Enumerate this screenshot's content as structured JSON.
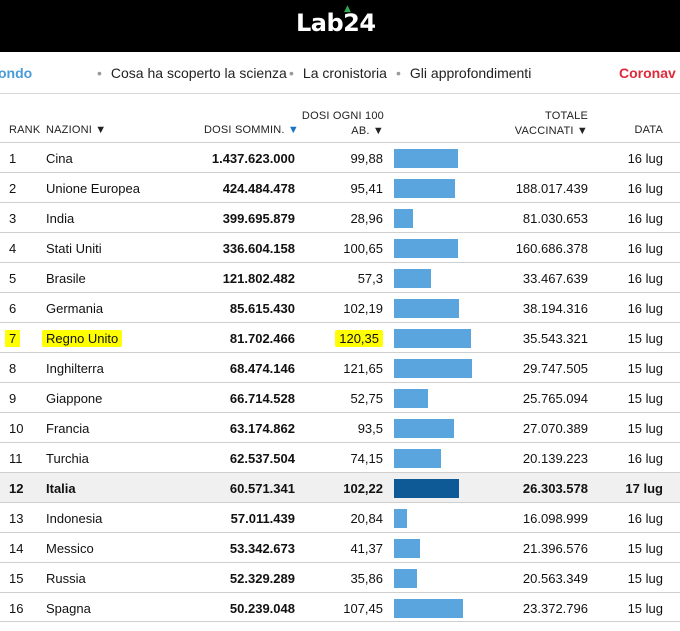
{
  "header": {
    "logo": "Lab24"
  },
  "nav": {
    "left_item": "ondo",
    "items": [
      "Cosa ha scoperto la scienza",
      "La cronistoria",
      "Gli approfondimenti"
    ],
    "right_item": "Coronav"
  },
  "columns": {
    "rank": "RANK",
    "nazioni": "NAZIONI",
    "dosi_somm": "DOSI SOMMIN.",
    "dosi_ogni_100_line1": "DOSI OGNI 100",
    "dosi_ogni_100_line2": "AB.",
    "totale_line1": "TOTALE",
    "totale_line2": "VACCINATI",
    "data": "DATA"
  },
  "icons": {
    "sort_down": "▼",
    "sort_active": "▼"
  },
  "colors": {
    "bar": "#5aa5dd",
    "bar_highlight": "#0d5a96",
    "marker": "#ffff00",
    "accent": "#1a73c6"
  },
  "rows": [
    {
      "rank": "1",
      "name": "Cina",
      "dosi": "1.437.623.000",
      "ogni100": "99,88",
      "ogni100_value": 99.88,
      "totale": "",
      "data": "16 lug"
    },
    {
      "rank": "2",
      "name": "Unione Europea",
      "dosi": "424.484.478",
      "ogni100": "95,41",
      "ogni100_value": 95.41,
      "totale": "188.017.439",
      "data": "16 lug"
    },
    {
      "rank": "3",
      "name": "India",
      "dosi": "399.695.879",
      "ogni100": "28,96",
      "ogni100_value": 28.96,
      "totale": "81.030.653",
      "data": "16 lug"
    },
    {
      "rank": "4",
      "name": "Stati Uniti",
      "dosi": "336.604.158",
      "ogni100": "100,65",
      "ogni100_value": 100.65,
      "totale": "160.686.378",
      "data": "16 lug"
    },
    {
      "rank": "5",
      "name": "Brasile",
      "dosi": "121.802.482",
      "ogni100": "57,3",
      "ogni100_value": 57.3,
      "totale": "33.467.639",
      "data": "16 lug"
    },
    {
      "rank": "6",
      "name": "Germania",
      "dosi": "85.615.430",
      "ogni100": "102,19",
      "ogni100_value": 102.19,
      "totale": "38.194.316",
      "data": "16 lug"
    },
    {
      "rank": "7",
      "name": "Regno Unito",
      "dosi": "81.702.466",
      "ogni100": "120,35",
      "ogni100_value": 120.35,
      "totale": "35.543.321",
      "data": "15 lug",
      "marked": true
    },
    {
      "rank": "8",
      "name": "Inghilterra",
      "dosi": "68.474.146",
      "ogni100": "121,65",
      "ogni100_value": 121.65,
      "totale": "29.747.505",
      "data": "15 lug"
    },
    {
      "rank": "9",
      "name": "Giappone",
      "dosi": "66.714.528",
      "ogni100": "52,75",
      "ogni100_value": 52.75,
      "totale": "25.765.094",
      "data": "15 lug"
    },
    {
      "rank": "10",
      "name": "Francia",
      "dosi": "63.174.862",
      "ogni100": "93,5",
      "ogni100_value": 93.5,
      "totale": "27.070.389",
      "data": "15 lug"
    },
    {
      "rank": "11",
      "name": "Turchia",
      "dosi": "62.537.504",
      "ogni100": "74,15",
      "ogni100_value": 74.15,
      "totale": "20.139.223",
      "data": "16 lug"
    },
    {
      "rank": "12",
      "name": "Italia",
      "dosi": "60.571.341",
      "ogni100": "102,22",
      "ogni100_value": 102.22,
      "totale": "26.303.578",
      "data": "17 lug",
      "highlight": true
    },
    {
      "rank": "13",
      "name": "Indonesia",
      "dosi": "57.011.439",
      "ogni100": "20,84",
      "ogni100_value": 20.84,
      "totale": "16.098.999",
      "data": "16 lug"
    },
    {
      "rank": "14",
      "name": "Messico",
      "dosi": "53.342.673",
      "ogni100": "41,37",
      "ogni100_value": 41.37,
      "totale": "21.396.576",
      "data": "15 lug"
    },
    {
      "rank": "15",
      "name": "Russia",
      "dosi": "52.329.289",
      "ogni100": "35,86",
      "ogni100_value": 35.86,
      "totale": "20.563.349",
      "data": "15 lug"
    },
    {
      "rank": "16",
      "name": "Spagna",
      "dosi": "50.239.048",
      "ogni100": "107,45",
      "ogni100_value": 107.45,
      "totale": "23.372.796",
      "data": "15 lug"
    }
  ]
}
